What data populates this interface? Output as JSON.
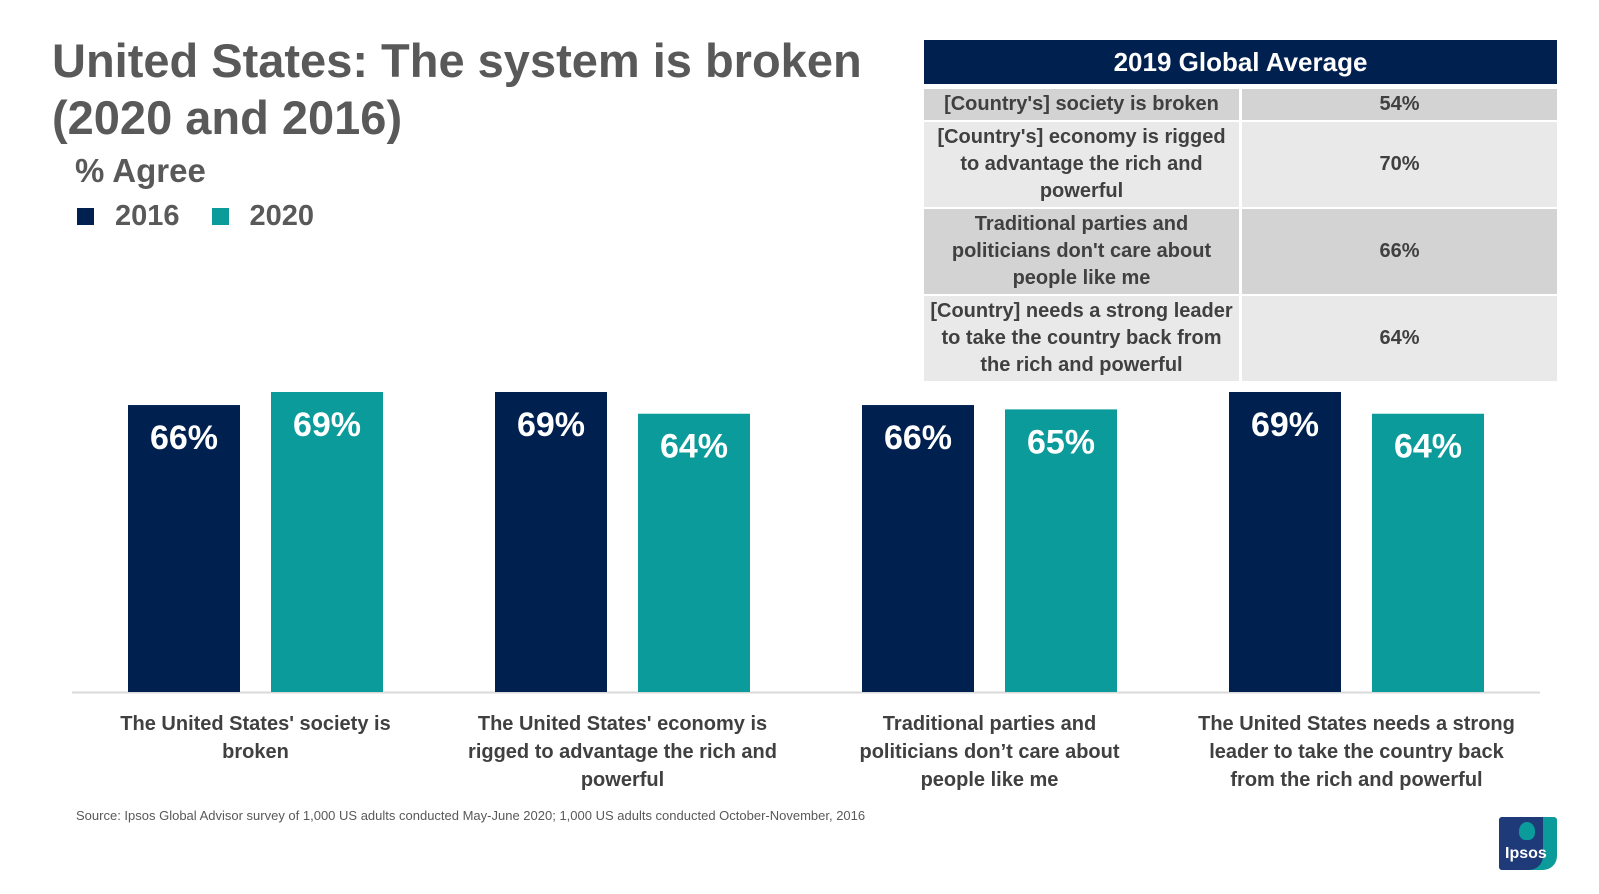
{
  "title": "United States: The system is broken (2020 and 2016)",
  "subtitle": "% Agree",
  "legend": [
    {
      "label": "2016",
      "color": "#002050"
    },
    {
      "label": "2020",
      "color": "#0a9b9a"
    }
  ],
  "global_table": {
    "header": "2019 Global Average",
    "rows": [
      {
        "label": "[Country's] society is broken",
        "value": "54%"
      },
      {
        "label": "[Country's] economy is rigged to advantage the rich and powerful",
        "value": "70%"
      },
      {
        "label": "Traditional parties and politicians don't care about people like me",
        "value": "66%"
      },
      {
        "label": "[Country] needs a strong leader to take the country back from the rich and powerful",
        "value": "64%"
      }
    ]
  },
  "chart_data": {
    "type": "bar",
    "title": "United States: The system is broken (2020 and 2016)",
    "ylabel": "% Agree",
    "ylim": [
      0,
      80
    ],
    "categories": [
      "The United States' society is broken",
      "The United States' economy is rigged to advantage the rich and powerful",
      "Traditional parties and politicians don’t care about people like me",
      "The United States needs a strong leader to take the country back from the rich and powerful"
    ],
    "series": [
      {
        "name": "2016",
        "color": "#002050",
        "values": [
          66,
          69,
          66,
          69
        ]
      },
      {
        "name": "2020",
        "color": "#0a9b9a",
        "values": [
          69,
          64,
          65,
          64
        ]
      }
    ]
  },
  "source": "Source: Ipsos Global Advisor survey of 1,000 US adults conducted May-June 2020; 1,000 US adults conducted October-November, 2016",
  "logo_text": "Ipsos"
}
